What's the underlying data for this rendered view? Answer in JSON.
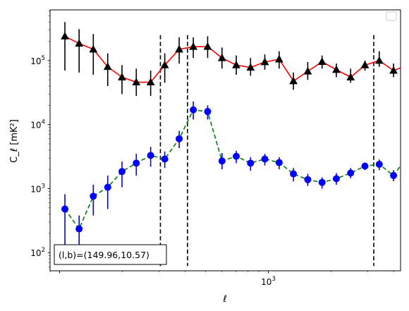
{
  "chart_data": {
    "type": "line",
    "xscale": "log",
    "yscale": "log",
    "xlabel": "ℓ",
    "ylabel": "C_ℓ [mK²]",
    "xlim": [
      90,
      4300
    ],
    "ylim": [
      52,
      620000
    ],
    "x_tick_labels": [
      {
        "value": 1000,
        "base": "10",
        "exp": "3"
      }
    ],
    "y_tick_labels": [
      {
        "value": 100,
        "base": "10",
        "exp": "2"
      },
      {
        "value": 1000,
        "base": "10",
        "exp": "3"
      },
      {
        "value": 10000,
        "base": "10",
        "exp": "4"
      },
      {
        "value": 100000,
        "base": "10",
        "exp": "5"
      }
    ],
    "vlines": [
      304,
      410,
      3200
    ],
    "vline_range": [
      62,
      250000
    ],
    "annotation": "(l,b)=(149.96,10.57)",
    "legend": {
      "placement": "top-right",
      "entries": []
    },
    "series": [
      {
        "color": "#ff0000",
        "marker_color": "#000000",
        "error_color": "#000000",
        "marker": "triangle",
        "line_style": "solid",
        "points": [
          {
            "x": 106,
            "y": 240000,
            "lo": 70000,
            "hi": 400000
          },
          {
            "x": 124,
            "y": 185000,
            "lo": 65000,
            "hi": 310000
          },
          {
            "x": 145,
            "y": 150000,
            "lo": 60000,
            "hi": 260000
          },
          {
            "x": 170,
            "y": 80000,
            "lo": 40000,
            "hi": 130000
          },
          {
            "x": 199,
            "y": 55000,
            "lo": 30000,
            "hi": 85000
          },
          {
            "x": 233,
            "y": 46000,
            "lo": 28000,
            "hi": 75000
          },
          {
            "x": 273,
            "y": 46000,
            "lo": 28000,
            "hi": 70000
          },
          {
            "x": 319,
            "y": 85000,
            "lo": 45000,
            "hi": 130000
          },
          {
            "x": 374,
            "y": 150000,
            "lo": 90000,
            "hi": 230000
          },
          {
            "x": 437,
            "y": 165000,
            "lo": 110000,
            "hi": 230000
          },
          {
            "x": 512,
            "y": 165000,
            "lo": 110000,
            "hi": 240000
          },
          {
            "x": 600,
            "y": 110000,
            "lo": 75000,
            "hi": 160000
          },
          {
            "x": 702,
            "y": 85000,
            "lo": 60000,
            "hi": 120000
          },
          {
            "x": 822,
            "y": 78000,
            "lo": 58000,
            "hi": 110000
          },
          {
            "x": 962,
            "y": 95000,
            "lo": 72000,
            "hi": 125000
          },
          {
            "x": 1127,
            "y": 105000,
            "lo": 75000,
            "hi": 140000
          },
          {
            "x": 1319,
            "y": 48000,
            "lo": 35000,
            "hi": 65000
          },
          {
            "x": 1545,
            "y": 68000,
            "lo": 50000,
            "hi": 95000
          },
          {
            "x": 1809,
            "y": 96000,
            "lo": 75000,
            "hi": 120000
          },
          {
            "x": 2118,
            "y": 72000,
            "lo": 55000,
            "hi": 90000
          },
          {
            "x": 2480,
            "y": 55000,
            "lo": 45000,
            "hi": 75000
          },
          {
            "x": 2904,
            "y": 85000,
            "lo": 70000,
            "hi": 100000
          },
          {
            "x": 3400,
            "y": 100000,
            "lo": 80000,
            "hi": 140000
          },
          {
            "x": 3981,
            "y": 70000,
            "lo": 55000,
            "hi": 90000
          },
          {
            "x": 4660,
            "y": 85000,
            "lo": 55000,
            "hi": 120000
          }
        ]
      },
      {
        "color": "#008000",
        "marker_color": "#0000ff",
        "error_color": "#0000ff",
        "marker": "circle",
        "line_style": "dashed",
        "points": [
          {
            "x": 106,
            "y": 480,
            "lo": 130,
            "hi": 820
          },
          {
            "x": 124,
            "y": 235,
            "lo": 100,
            "hi": 380
          },
          {
            "x": 145,
            "y": 760,
            "lo": 380,
            "hi": 1150
          },
          {
            "x": 170,
            "y": 1050,
            "lo": 480,
            "hi": 1600
          },
          {
            "x": 199,
            "y": 1850,
            "lo": 1050,
            "hi": 2650
          },
          {
            "x": 233,
            "y": 2500,
            "lo": 1600,
            "hi": 3500
          },
          {
            "x": 273,
            "y": 3300,
            "lo": 2200,
            "hi": 4500
          },
          {
            "x": 319,
            "y": 2900,
            "lo": 2100,
            "hi": 3800
          },
          {
            "x": 374,
            "y": 6000,
            "lo": 4300,
            "hi": 8000
          },
          {
            "x": 437,
            "y": 17000,
            "lo": 12000,
            "hi": 23000
          },
          {
            "x": 512,
            "y": 16000,
            "lo": 12000,
            "hi": 20000
          },
          {
            "x": 600,
            "y": 2700,
            "lo": 2000,
            "hi": 3600
          },
          {
            "x": 702,
            "y": 3200,
            "lo": 2500,
            "hi": 3900
          },
          {
            "x": 822,
            "y": 2500,
            "lo": 1900,
            "hi": 3100
          },
          {
            "x": 962,
            "y": 2900,
            "lo": 2300,
            "hi": 3500
          },
          {
            "x": 1127,
            "y": 2550,
            "lo": 2000,
            "hi": 3100
          },
          {
            "x": 1319,
            "y": 1700,
            "lo": 1300,
            "hi": 2100
          },
          {
            "x": 1545,
            "y": 1380,
            "lo": 1100,
            "hi": 1700
          },
          {
            "x": 1809,
            "y": 1250,
            "lo": 1000,
            "hi": 1500
          },
          {
            "x": 2118,
            "y": 1430,
            "lo": 1150,
            "hi": 1750
          },
          {
            "x": 2480,
            "y": 1750,
            "lo": 1450,
            "hi": 2100
          },
          {
            "x": 2904,
            "y": 2250,
            "lo": 1950,
            "hi": 2550
          },
          {
            "x": 3400,
            "y": 2400,
            "lo": 1950,
            "hi": 2850
          },
          {
            "x": 3981,
            "y": 1600,
            "lo": 1300,
            "hi": 1950
          },
          {
            "x": 4660,
            "y": 3300,
            "lo": 2500,
            "hi": 4400
          }
        ]
      }
    ]
  }
}
